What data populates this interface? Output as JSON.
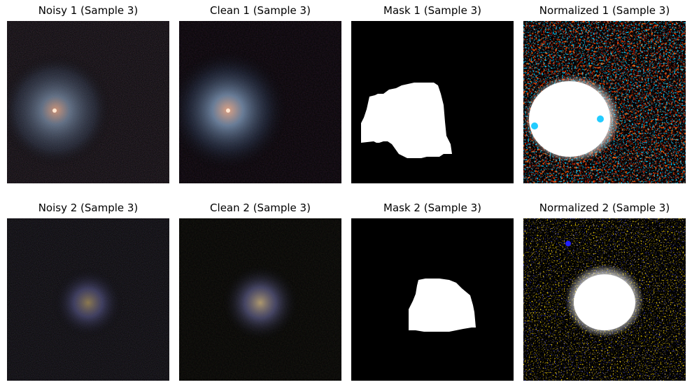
{
  "figure": {
    "rows": [
      {
        "panels": [
          {
            "title": "Noisy 1 (Sample 3)",
            "kind": "noisy",
            "tint": "#5a7fa0",
            "core": "#c98a6a"
          },
          {
            "title": "Clean 1 (Sample 3)",
            "kind": "clean",
            "tint": "#6f90b0",
            "core": "#d59a7a"
          },
          {
            "title": "Mask 1 (Sample 3)",
            "kind": "mask"
          },
          {
            "title": "Normalized 1 (Sample 3)",
            "kind": "normalized",
            "tint": "#ff3a1a",
            "accent": "#22bbff"
          }
        ]
      },
      {
        "panels": [
          {
            "title": "Noisy 2 (Sample 3)",
            "kind": "noisy",
            "tint": "#5a5a90",
            "core": "#a08a50"
          },
          {
            "title": "Clean 2 (Sample 3)",
            "kind": "clean",
            "tint": "#7070a0",
            "core": "#b0a070"
          },
          {
            "title": "Mask 2 (Sample 3)",
            "kind": "mask"
          },
          {
            "title": "Normalized 2 (Sample 3)",
            "kind": "normalized",
            "tint": "#ffb000",
            "accent": "#2020ff"
          }
        ]
      }
    ]
  }
}
